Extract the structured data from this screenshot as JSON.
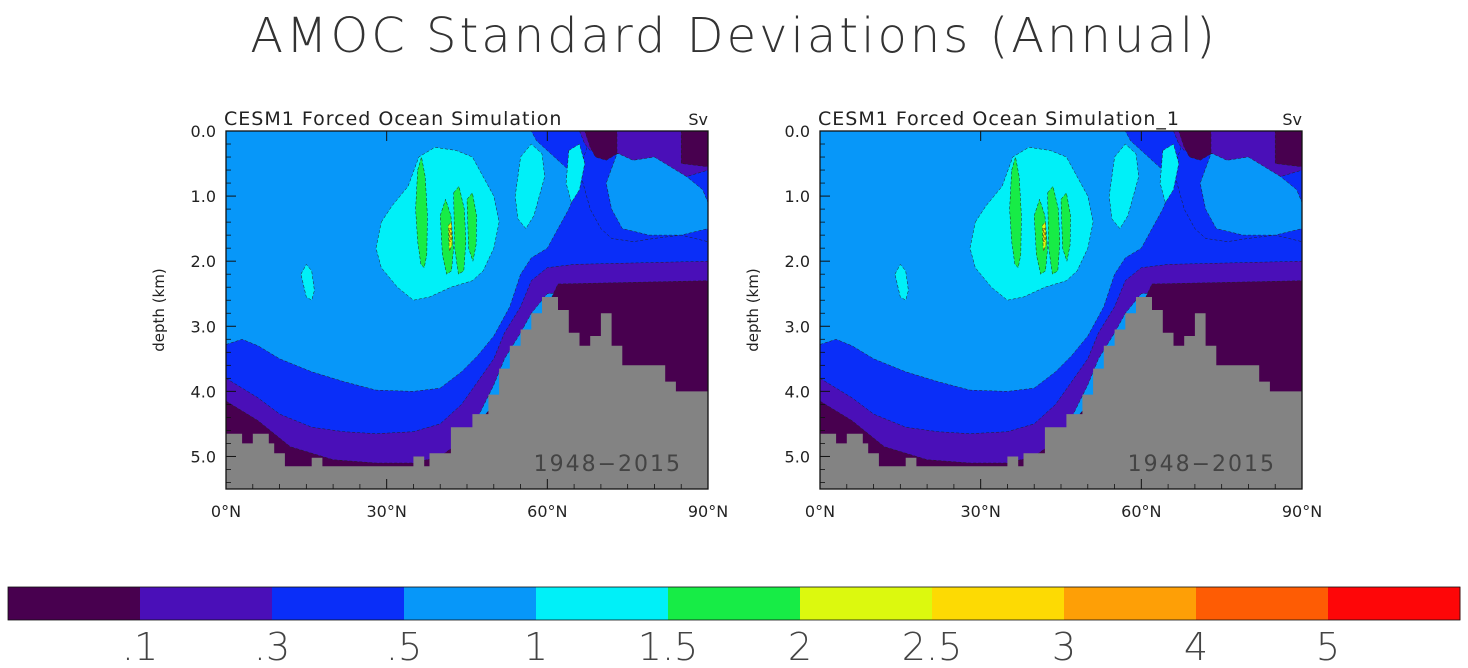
{
  "figure": {
    "title": "AMOC Standard Deviations (Annual)"
  },
  "chart_data": [
    {
      "type": "heatmap",
      "title": "CESM1 Forced Ocean Simulation",
      "units": "Sv",
      "ylabel": "depth (km)",
      "annotation": "1948−2015",
      "x_ticks": [
        "0°N",
        "30°N",
        "60°N",
        "90°N"
      ],
      "x_tick_values": [
        0,
        30,
        60,
        90
      ],
      "y_ticks": [
        "0.0",
        "1.0",
        "2.0",
        "3.0",
        "4.0",
        "5.0"
      ],
      "y_tick_values": [
        0,
        1,
        2,
        3,
        4,
        5
      ],
      "xlim": [
        0,
        90
      ],
      "ylim": [
        5.5,
        0
      ],
      "max_value_estimate": 2.5
    },
    {
      "type": "heatmap",
      "title": "CESM1 Forced Ocean Simulation_1",
      "units": "Sv",
      "ylabel": "depth (km)",
      "annotation": "1948−2015",
      "x_ticks": [
        "0°N",
        "30°N",
        "60°N",
        "90°N"
      ],
      "x_tick_values": [
        0,
        30,
        60,
        90
      ],
      "y_ticks": [
        "0.0",
        "1.0",
        "2.0",
        "3.0",
        "4.0",
        "5.0"
      ],
      "y_tick_values": [
        0,
        1,
        2,
        3,
        4,
        5
      ],
      "xlim": [
        0,
        90
      ],
      "ylim": [
        5.5,
        0
      ],
      "max_value_estimate": 2.5
    }
  ],
  "colorbar": {
    "colors": [
      "#48004f",
      "#4a0fb8",
      "#0a2ef8",
      "#0797f9",
      "#00f0f8",
      "#17ec46",
      "#dcf90e",
      "#fdda03",
      "#fe9f06",
      "#fe5c04",
      "#fe0608"
    ],
    "labels": [
      ".1",
      ".3",
      ".5",
      "1",
      "1.5",
      "2",
      "2.5",
      "3",
      "4",
      "5"
    ]
  },
  "land_color": "#838383"
}
